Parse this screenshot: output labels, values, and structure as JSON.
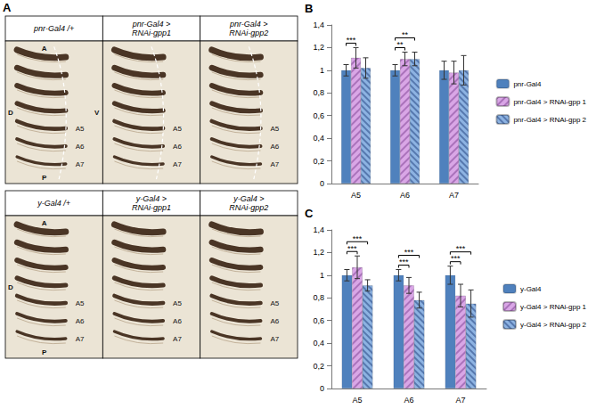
{
  "panel_A": {
    "panel_label": "A",
    "rows": [
      {
        "cells": [
          {
            "title": "pnr-Gal4 /+",
            "labels": [
              "A",
              "D",
              "V",
              "P",
              "A5",
              "A6",
              "A7"
            ]
          },
          {
            "title": "pnr-Gal4 > RNAi-gpp1",
            "labels": [
              "A5",
              "A6",
              "A7"
            ]
          },
          {
            "title": "pnr-Gal4 > RNAi-gpp2",
            "labels": [
              "A5",
              "A6",
              "A7"
            ]
          }
        ]
      },
      {
        "cells": [
          {
            "title": "y-Gal4 /+",
            "labels": [
              "A",
              "D",
              "P",
              "A5",
              "A6",
              "A7"
            ]
          },
          {
            "title": "y-Gal4 > RNAi-gpp1",
            "labels": [
              "A5",
              "A6",
              "A7"
            ]
          },
          {
            "title": "y-Gal4 > RNAi-gpp2",
            "labels": [
              "A5",
              "A6",
              "A7"
            ]
          }
        ]
      }
    ]
  },
  "chart_data": [
    {
      "type": "bar",
      "panel_label": "B",
      "categories": [
        "A5",
        "A6",
        "A7"
      ],
      "series": [
        {
          "name": "pnr-Gal4",
          "color": "#4f81bd",
          "values": [
            1.0,
            1.0,
            1.0
          ],
          "errors": [
            0.05,
            0.05,
            0.08
          ]
        },
        {
          "name": "pnr-Gal4 > RNAi-gpp 1",
          "color": "#d9a6e6",
          "values": [
            1.11,
            1.1,
            0.98
          ],
          "errors": [
            0.09,
            0.06,
            0.1
          ]
        },
        {
          "name": "pnr-Gal4 > RNAi-gpp 2",
          "color": "#8db3e2",
          "values": [
            1.02,
            1.1,
            1.0
          ],
          "errors": [
            0.09,
            0.06,
            0.13
          ]
        }
      ],
      "ylim": [
        0,
        1.4
      ],
      "yticks": [
        0,
        {
          "value": 0.2,
          "label": "0,2"
        },
        {
          "value": 0.4,
          "label": "0,4"
        },
        {
          "value": 0.6,
          "label": "0,6"
        },
        {
          "value": 0.8,
          "label": "0,8"
        },
        1,
        {
          "value": 1.2,
          "label": "1,2"
        },
        {
          "value": 1.4,
          "label": "1,4"
        }
      ],
      "grid": false,
      "legend": "right",
      "annotations": [
        {
          "category": "A5",
          "between": [
            "pnr-Gal4",
            "pnr-Gal4 > RNAi-gpp 1"
          ],
          "label": "***"
        },
        {
          "category": "A6",
          "between": [
            "pnr-Gal4",
            "pnr-Gal4 > RNAi-gpp 1"
          ],
          "label": "**"
        },
        {
          "category": "A6",
          "between": [
            "pnr-Gal4",
            "pnr-Gal4 > RNAi-gpp 2"
          ],
          "label": "**"
        }
      ]
    },
    {
      "type": "bar",
      "panel_label": "C",
      "categories": [
        "A5",
        "A6",
        "A7"
      ],
      "series": [
        {
          "name": "y-Gal4",
          "color": "#4f81bd",
          "values": [
            1.0,
            1.0,
            1.0
          ],
          "errors": [
            0.05,
            0.05,
            0.08
          ]
        },
        {
          "name": "y-Gal4 > RNAi-gpp 1",
          "color": "#d9a6e6",
          "values": [
            1.07,
            0.91,
            0.82
          ],
          "errors": [
            0.1,
            0.07,
            0.1
          ]
        },
        {
          "name": "y-Gal4 > RNAi-gpp 2",
          "color": "#8db3e2",
          "values": [
            0.91,
            0.78,
            0.75
          ],
          "errors": [
            0.05,
            0.07,
            0.12
          ]
        }
      ],
      "ylim": [
        0,
        1.4
      ],
      "yticks": [
        0,
        {
          "value": 0.2,
          "label": "0,2"
        },
        {
          "value": 0.4,
          "label": "0,4"
        },
        {
          "value": 0.6,
          "label": "0,6"
        },
        {
          "value": 0.8,
          "label": "0,8"
        },
        1,
        {
          "value": 1.2,
          "label": "1,2"
        },
        {
          "value": 1.4,
          "label": "1,4"
        }
      ],
      "grid": false,
      "legend": "right",
      "annotations": [
        {
          "category": "A5",
          "between": [
            "y-Gal4",
            "y-Gal4 > RNAi-gpp 1"
          ],
          "label": "***"
        },
        {
          "category": "A5",
          "between": [
            "y-Gal4",
            "y-Gal4 > RNAi-gpp 2"
          ],
          "label": "***"
        },
        {
          "category": "A6",
          "between": [
            "y-Gal4",
            "y-Gal4 > RNAi-gpp 1"
          ],
          "label": "***"
        },
        {
          "category": "A6",
          "between": [
            "y-Gal4",
            "y-Gal4 > RNAi-gpp 2"
          ],
          "label": "***"
        },
        {
          "category": "A7",
          "between": [
            "y-Gal4",
            "y-Gal4 > RNAi-gpp 1"
          ],
          "label": "***"
        },
        {
          "category": "A7",
          "between": [
            "y-Gal4",
            "y-Gal4 > RNAi-gpp 2"
          ],
          "label": "***"
        }
      ]
    }
  ]
}
